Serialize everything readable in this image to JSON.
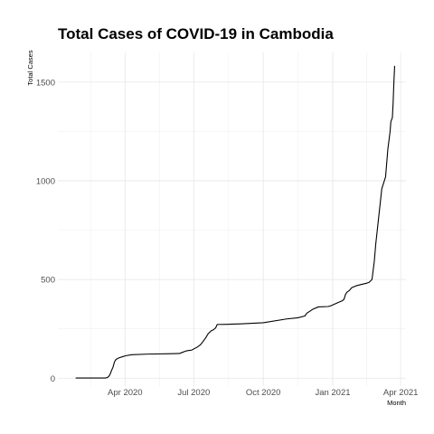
{
  "chart_data": {
    "type": "line",
    "title": "Total Cases of COVID-19 in Cambodia",
    "xlabel": "Month",
    "ylabel": "Total Cases",
    "x_axis": {
      "kind": "date",
      "range": [
        "2020-01-03",
        "2021-04-08"
      ],
      "ticks": [
        {
          "value": "2020-04-01",
          "label": "Apr 2020"
        },
        {
          "value": "2020-07-01",
          "label": "Jul 2020"
        },
        {
          "value": "2020-10-01",
          "label": "Oct 2020"
        },
        {
          "value": "2021-01-01",
          "label": "Jan 2021"
        },
        {
          "value": "2021-04-01",
          "label": "Apr 2021"
        }
      ]
    },
    "y_axis": {
      "range": [
        -40,
        1650
      ],
      "ticks": [
        {
          "value": 0,
          "label": "0"
        },
        {
          "value": 500,
          "label": "500"
        },
        {
          "value": 1000,
          "label": "1000"
        },
        {
          "value": 1500,
          "label": "1500"
        }
      ]
    },
    "grid": true,
    "legend": "none",
    "line_color": "#000000",
    "series": [
      {
        "x": [
          "2020-01-27",
          "2020-03-06",
          "2020-03-08",
          "2020-03-10",
          "2020-03-12",
          "2020-03-14",
          "2020-03-16",
          "2020-03-18",
          "2020-03-20",
          "2020-03-24",
          "2020-03-28",
          "2020-04-02",
          "2020-04-10",
          "2020-05-01",
          "2020-06-01",
          "2020-06-12",
          "2020-06-14",
          "2020-06-20",
          "2020-06-22",
          "2020-06-26",
          "2020-06-28",
          "2020-07-05",
          "2020-07-08",
          "2020-07-10",
          "2020-07-14",
          "2020-07-17",
          "2020-07-20",
          "2020-07-24",
          "2020-07-27",
          "2020-07-30",
          "2020-08-01",
          "2020-08-15",
          "2020-09-01",
          "2020-10-01",
          "2020-11-01",
          "2020-11-16",
          "2020-11-25",
          "2020-11-28",
          "2020-12-02",
          "2020-12-06",
          "2020-12-13",
          "2020-12-26",
          "2020-12-29",
          "2021-01-08",
          "2021-01-14",
          "2021-01-16",
          "2021-01-18",
          "2021-01-20",
          "2021-01-23",
          "2021-01-26",
          "2021-02-01",
          "2021-02-08",
          "2021-02-14",
          "2021-02-18",
          "2021-02-22",
          "2021-02-25",
          "2021-02-27",
          "2021-03-01",
          "2021-03-03",
          "2021-03-07",
          "2021-03-12",
          "2021-03-15",
          "2021-03-18",
          "2021-03-19",
          "2021-03-21",
          "2021-03-22",
          "2021-03-23",
          "2021-03-24"
        ],
        "y": [
          1,
          1,
          3,
          7,
          18,
          38,
          56,
          83,
          95,
          103,
          108,
          114,
          119,
          122,
          124,
          125,
          128,
          137,
          139,
          141,
          142,
          156,
          164,
          170,
          190,
          206,
          225,
          240,
          245,
          255,
          272,
          273,
          275,
          281,
          300,
          306,
          315,
          330,
          340,
          350,
          361,
          363,
          366,
          383,
          393,
          400,
          425,
          436,
          444,
          458,
          468,
          475,
          480,
          485,
          500,
          590,
          680,
          750,
          820,
          960,
          1020,
          1160,
          1250,
          1300,
          1320,
          1395,
          1500,
          1580
        ]
      }
    ]
  }
}
